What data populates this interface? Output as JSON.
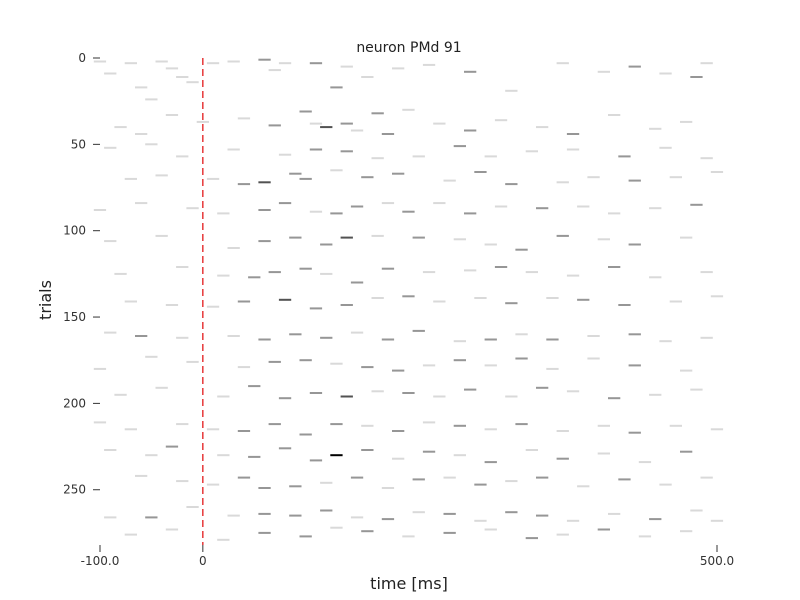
{
  "chart_data": {
    "type": "raster",
    "title": "neuron PMd 91",
    "xlabel": "time [ms]",
    "ylabel": "trials",
    "xlim": [
      -100.0,
      500.0
    ],
    "ylim": [
      0,
      282
    ],
    "y_inverted": true,
    "xticks": [
      {
        "value": -100.0,
        "label": "-100.0"
      },
      {
        "value": 0,
        "label": "0"
      },
      {
        "value": 500.0,
        "label": "500.0"
      }
    ],
    "yticks": [
      {
        "value": 0,
        "label": "0"
      },
      {
        "value": 50,
        "label": "50"
      },
      {
        "value": 100,
        "label": "100"
      },
      {
        "value": 150,
        "label": "150"
      },
      {
        "value": 200,
        "label": "200"
      },
      {
        "value": 250,
        "label": "250"
      }
    ],
    "event_marker": {
      "x": 0,
      "color": "#e31a1c",
      "style": "dashed"
    },
    "bin_width_ms": 10,
    "n_trials": 282,
    "spike_color_scale": [
      "#d9d9d9",
      "#969696",
      "#525252",
      "#000000"
    ],
    "spikes": [
      [
        -100,
        2,
        0
      ],
      [
        -90,
        9,
        0
      ],
      [
        -70,
        3,
        0
      ],
      [
        -60,
        17,
        0
      ],
      [
        -50,
        24,
        0
      ],
      [
        -40,
        2,
        0
      ],
      [
        -30,
        6,
        0
      ],
      [
        -20,
        11,
        0
      ],
      [
        -10,
        14,
        0
      ],
      [
        10,
        3,
        0
      ],
      [
        30,
        2,
        0
      ],
      [
        60,
        1,
        1
      ],
      [
        70,
        7,
        0
      ],
      [
        80,
        3,
        0
      ],
      [
        110,
        3,
        1
      ],
      [
        130,
        17,
        1
      ],
      [
        140,
        5,
        0
      ],
      [
        160,
        11,
        0
      ],
      [
        190,
        6,
        0
      ],
      [
        220,
        4,
        0
      ],
      [
        260,
        8,
        1
      ],
      [
        300,
        19,
        0
      ],
      [
        350,
        3,
        0
      ],
      [
        390,
        8,
        0
      ],
      [
        420,
        5,
        1
      ],
      [
        450,
        9,
        0
      ],
      [
        480,
        11,
        1
      ],
      [
        490,
        3,
        0
      ],
      [
        -80,
        40,
        0
      ],
      [
        -60,
        44,
        0
      ],
      [
        -30,
        33,
        0
      ],
      [
        0,
        37,
        0
      ],
      [
        40,
        35,
        0
      ],
      [
        70,
        39,
        1
      ],
      [
        100,
        31,
        1
      ],
      [
        110,
        38,
        0
      ],
      [
        120,
        40,
        2
      ],
      [
        140,
        38,
        1
      ],
      [
        150,
        42,
        0
      ],
      [
        170,
        32,
        1
      ],
      [
        180,
        44,
        1
      ],
      [
        200,
        30,
        0
      ],
      [
        230,
        38,
        0
      ],
      [
        260,
        42,
        1
      ],
      [
        290,
        36,
        0
      ],
      [
        330,
        40,
        0
      ],
      [
        360,
        44,
        1
      ],
      [
        400,
        33,
        0
      ],
      [
        440,
        41,
        0
      ],
      [
        470,
        37,
        0
      ],
      [
        -90,
        52,
        0
      ],
      [
        -50,
        50,
        0
      ],
      [
        -20,
        57,
        0
      ],
      [
        30,
        53,
        0
      ],
      [
        80,
        56,
        0
      ],
      [
        110,
        53,
        1
      ],
      [
        140,
        54,
        1
      ],
      [
        170,
        58,
        0
      ],
      [
        210,
        57,
        0
      ],
      [
        250,
        51,
        1
      ],
      [
        280,
        57,
        0
      ],
      [
        320,
        54,
        0
      ],
      [
        360,
        53,
        0
      ],
      [
        410,
        57,
        1
      ],
      [
        450,
        52,
        0
      ],
      [
        490,
        58,
        0
      ],
      [
        -70,
        70,
        0
      ],
      [
        -40,
        68,
        0
      ],
      [
        10,
        70,
        0
      ],
      [
        40,
        73,
        1
      ],
      [
        60,
        72,
        2
      ],
      [
        90,
        67,
        1
      ],
      [
        100,
        70,
        1
      ],
      [
        130,
        65,
        0
      ],
      [
        160,
        69,
        1
      ],
      [
        190,
        67,
        1
      ],
      [
        240,
        71,
        0
      ],
      [
        270,
        66,
        1
      ],
      [
        300,
        73,
        1
      ],
      [
        350,
        72,
        0
      ],
      [
        380,
        69,
        0
      ],
      [
        420,
        71,
        1
      ],
      [
        460,
        69,
        0
      ],
      [
        500,
        66,
        0
      ],
      [
        -100,
        88,
        0
      ],
      [
        -60,
        84,
        0
      ],
      [
        -10,
        87,
        0
      ],
      [
        20,
        90,
        0
      ],
      [
        60,
        88,
        1
      ],
      [
        80,
        84,
        1
      ],
      [
        110,
        89,
        0
      ],
      [
        130,
        90,
        1
      ],
      [
        150,
        86,
        1
      ],
      [
        180,
        84,
        0
      ],
      [
        200,
        89,
        1
      ],
      [
        230,
        84,
        0
      ],
      [
        260,
        90,
        1
      ],
      [
        290,
        86,
        0
      ],
      [
        330,
        87,
        1
      ],
      [
        370,
        86,
        0
      ],
      [
        400,
        90,
        0
      ],
      [
        440,
        87,
        0
      ],
      [
        480,
        85,
        1
      ],
      [
        -90,
        106,
        0
      ],
      [
        -40,
        103,
        0
      ],
      [
        30,
        110,
        0
      ],
      [
        60,
        106,
        1
      ],
      [
        90,
        104,
        1
      ],
      [
        120,
        108,
        1
      ],
      [
        140,
        104,
        2
      ],
      [
        170,
        103,
        0
      ],
      [
        210,
        104,
        1
      ],
      [
        250,
        105,
        0
      ],
      [
        280,
        108,
        0
      ],
      [
        310,
        111,
        1
      ],
      [
        350,
        103,
        1
      ],
      [
        390,
        105,
        0
      ],
      [
        420,
        108,
        1
      ],
      [
        470,
        104,
        0
      ],
      [
        -80,
        125,
        0
      ],
      [
        -20,
        121,
        0
      ],
      [
        20,
        126,
        0
      ],
      [
        50,
        127,
        1
      ],
      [
        70,
        124,
        1
      ],
      [
        100,
        122,
        1
      ],
      [
        120,
        125,
        0
      ],
      [
        150,
        130,
        1
      ],
      [
        180,
        122,
        1
      ],
      [
        220,
        124,
        0
      ],
      [
        260,
        123,
        0
      ],
      [
        290,
        121,
        1
      ],
      [
        320,
        124,
        0
      ],
      [
        360,
        126,
        0
      ],
      [
        400,
        121,
        1
      ],
      [
        440,
        127,
        0
      ],
      [
        490,
        124,
        0
      ],
      [
        -70,
        141,
        0
      ],
      [
        -30,
        143,
        0
      ],
      [
        10,
        144,
        0
      ],
      [
        40,
        141,
        1
      ],
      [
        80,
        140,
        2
      ],
      [
        110,
        145,
        1
      ],
      [
        140,
        143,
        1
      ],
      [
        170,
        139,
        0
      ],
      [
        200,
        138,
        1
      ],
      [
        230,
        141,
        0
      ],
      [
        270,
        139,
        0
      ],
      [
        300,
        142,
        1
      ],
      [
        340,
        139,
        0
      ],
      [
        370,
        140,
        1
      ],
      [
        410,
        143,
        1
      ],
      [
        460,
        141,
        0
      ],
      [
        500,
        138,
        0
      ],
      [
        -90,
        159,
        0
      ],
      [
        -60,
        161,
        1
      ],
      [
        -20,
        162,
        0
      ],
      [
        30,
        161,
        0
      ],
      [
        60,
        163,
        1
      ],
      [
        90,
        160,
        1
      ],
      [
        120,
        162,
        1
      ],
      [
        150,
        159,
        0
      ],
      [
        180,
        163,
        1
      ],
      [
        210,
        158,
        1
      ],
      [
        250,
        164,
        0
      ],
      [
        280,
        163,
        1
      ],
      [
        310,
        160,
        0
      ],
      [
        340,
        163,
        1
      ],
      [
        380,
        161,
        0
      ],
      [
        420,
        160,
        1
      ],
      [
        450,
        164,
        0
      ],
      [
        490,
        162,
        0
      ],
      [
        -100,
        180,
        0
      ],
      [
        -50,
        173,
        0
      ],
      [
        -10,
        176,
        0
      ],
      [
        40,
        179,
        0
      ],
      [
        70,
        176,
        1
      ],
      [
        100,
        175,
        1
      ],
      [
        130,
        177,
        0
      ],
      [
        160,
        179,
        1
      ],
      [
        190,
        181,
        1
      ],
      [
        220,
        178,
        0
      ],
      [
        250,
        175,
        1
      ],
      [
        280,
        178,
        0
      ],
      [
        310,
        174,
        1
      ],
      [
        340,
        180,
        0
      ],
      [
        380,
        174,
        0
      ],
      [
        420,
        178,
        1
      ],
      [
        470,
        181,
        0
      ],
      [
        -80,
        195,
        0
      ],
      [
        -40,
        191,
        0
      ],
      [
        20,
        196,
        0
      ],
      [
        50,
        190,
        1
      ],
      [
        80,
        197,
        1
      ],
      [
        110,
        194,
        1
      ],
      [
        140,
        196,
        2
      ],
      [
        170,
        193,
        0
      ],
      [
        200,
        194,
        1
      ],
      [
        230,
        196,
        0
      ],
      [
        260,
        192,
        1
      ],
      [
        300,
        196,
        0
      ],
      [
        330,
        191,
        1
      ],
      [
        360,
        193,
        0
      ],
      [
        400,
        197,
        1
      ],
      [
        440,
        195,
        0
      ],
      [
        480,
        192,
        0
      ],
      [
        -100,
        211,
        0
      ],
      [
        -70,
        215,
        0
      ],
      [
        -20,
        212,
        0
      ],
      [
        10,
        215,
        0
      ],
      [
        40,
        216,
        1
      ],
      [
        70,
        212,
        1
      ],
      [
        100,
        218,
        1
      ],
      [
        130,
        212,
        1
      ],
      [
        160,
        213,
        0
      ],
      [
        190,
        216,
        1
      ],
      [
        220,
        211,
        0
      ],
      [
        250,
        213,
        1
      ],
      [
        280,
        215,
        0
      ],
      [
        310,
        212,
        1
      ],
      [
        350,
        216,
        0
      ],
      [
        390,
        213,
        0
      ],
      [
        420,
        217,
        1
      ],
      [
        460,
        213,
        0
      ],
      [
        500,
        215,
        0
      ],
      [
        -90,
        227,
        0
      ],
      [
        -50,
        230,
        0
      ],
      [
        -30,
        225,
        1
      ],
      [
        20,
        230,
        0
      ],
      [
        50,
        231,
        1
      ],
      [
        80,
        226,
        1
      ],
      [
        110,
        233,
        1
      ],
      [
        130,
        230,
        3
      ],
      [
        160,
        227,
        1
      ],
      [
        190,
        232,
        0
      ],
      [
        220,
        228,
        1
      ],
      [
        250,
        230,
        0
      ],
      [
        280,
        234,
        1
      ],
      [
        320,
        227,
        0
      ],
      [
        350,
        232,
        1
      ],
      [
        390,
        229,
        0
      ],
      [
        430,
        234,
        0
      ],
      [
        470,
        228,
        1
      ],
      [
        -60,
        242,
        0
      ],
      [
        -20,
        245,
        0
      ],
      [
        10,
        247,
        0
      ],
      [
        40,
        243,
        1
      ],
      [
        60,
        249,
        1
      ],
      [
        90,
        248,
        1
      ],
      [
        120,
        246,
        0
      ],
      [
        150,
        243,
        1
      ],
      [
        180,
        249,
        0
      ],
      [
        210,
        244,
        1
      ],
      [
        240,
        243,
        0
      ],
      [
        270,
        247,
        1
      ],
      [
        300,
        245,
        0
      ],
      [
        330,
        243,
        1
      ],
      [
        370,
        248,
        0
      ],
      [
        410,
        244,
        1
      ],
      [
        450,
        247,
        0
      ],
      [
        490,
        243,
        0
      ],
      [
        -90,
        266,
        0
      ],
      [
        -50,
        266,
        1
      ],
      [
        -10,
        260,
        0
      ],
      [
        30,
        265,
        0
      ],
      [
        60,
        264,
        1
      ],
      [
        90,
        265,
        1
      ],
      [
        120,
        262,
        1
      ],
      [
        150,
        266,
        0
      ],
      [
        180,
        267,
        1
      ],
      [
        210,
        263,
        0
      ],
      [
        240,
        264,
        1
      ],
      [
        270,
        268,
        0
      ],
      [
        300,
        263,
        1
      ],
      [
        330,
        265,
        1
      ],
      [
        360,
        268,
        0
      ],
      [
        400,
        264,
        0
      ],
      [
        440,
        267,
        1
      ],
      [
        480,
        262,
        0
      ],
      [
        500,
        268,
        0
      ],
      [
        -70,
        276,
        0
      ],
      [
        -30,
        273,
        0
      ],
      [
        20,
        279,
        0
      ],
      [
        60,
        275,
        1
      ],
      [
        100,
        277,
        1
      ],
      [
        130,
        272,
        0
      ],
      [
        160,
        274,
        1
      ],
      [
        200,
        277,
        0
      ],
      [
        240,
        275,
        1
      ],
      [
        280,
        273,
        0
      ],
      [
        320,
        278,
        1
      ],
      [
        350,
        276,
        0
      ],
      [
        390,
        273,
        1
      ],
      [
        430,
        277,
        0
      ],
      [
        470,
        274,
        0
      ]
    ]
  }
}
